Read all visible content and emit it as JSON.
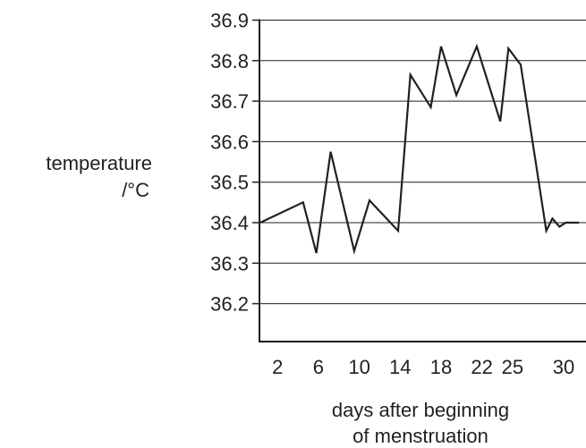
{
  "chart_data": {
    "type": "line",
    "title": "",
    "ylabel": [
      "temperature",
      "/°C"
    ],
    "xlabel": [
      "days after beginning",
      "of menstruation"
    ],
    "ylim": [
      36.1,
      36.9
    ],
    "y_ticks": [
      36.2,
      36.3,
      36.4,
      36.5,
      36.6,
      36.7,
      36.8,
      36.9
    ],
    "y_tick_labels": [
      "36.2",
      "36.3",
      "36.4",
      "36.5",
      "36.6",
      "36.7",
      "36.8",
      "36.9"
    ],
    "x_ticks": [
      2,
      6,
      10,
      14,
      18,
      22,
      25,
      30
    ],
    "x_tick_labels": [
      "2",
      "6",
      "10",
      "14",
      "18",
      "22",
      "25",
      "30"
    ],
    "grid": true,
    "line_color": "#231f20",
    "series": [
      {
        "points": [
          [
            0.3,
            36.4
          ],
          [
            4.5,
            36.45
          ],
          [
            5.8,
            36.325
          ],
          [
            7.2,
            36.575
          ],
          [
            9.5,
            36.33
          ],
          [
            11.0,
            36.455
          ],
          [
            13.8,
            36.38
          ],
          [
            15.0,
            36.765
          ],
          [
            17.0,
            36.685
          ],
          [
            18.0,
            36.835
          ],
          [
            19.5,
            36.715
          ],
          [
            21.5,
            36.835
          ],
          [
            23.8,
            36.65
          ],
          [
            24.6,
            36.83
          ],
          [
            25.8,
            36.79
          ],
          [
            28.3,
            36.38
          ],
          [
            28.9,
            36.41
          ],
          [
            29.6,
            36.39
          ],
          [
            30.2,
            36.4
          ],
          [
            31.5,
            36.4
          ]
        ]
      }
    ]
  }
}
